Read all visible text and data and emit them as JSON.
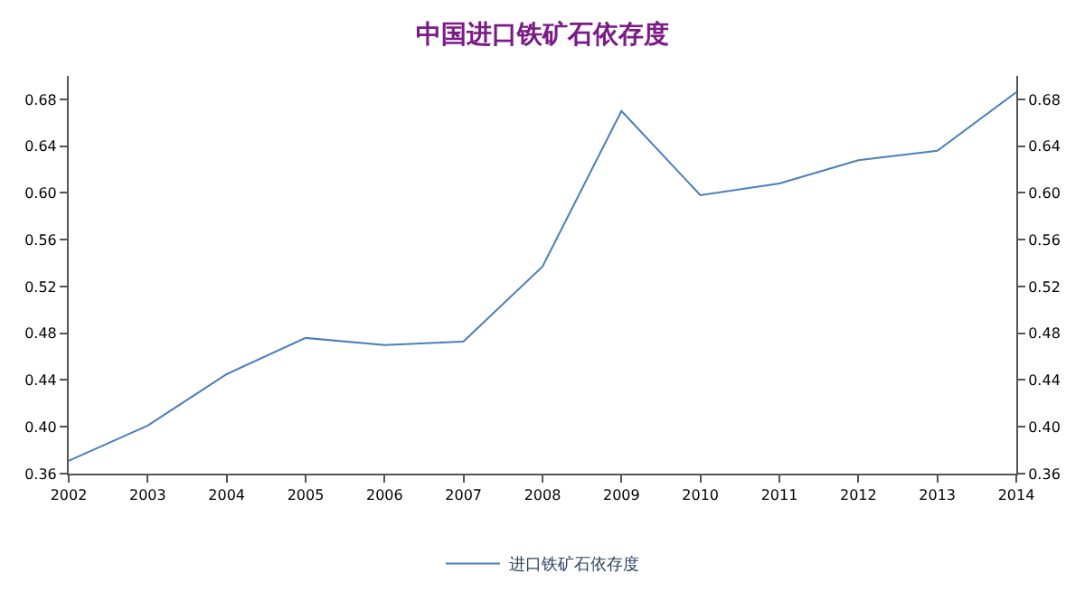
{
  "chart_data": {
    "type": "line",
    "title": "中国进口铁矿石依存度",
    "x": [
      2002,
      2003,
      2004,
      2005,
      2006,
      2007,
      2008,
      2009,
      2010,
      2011,
      2012,
      2013,
      2014
    ],
    "series": [
      {
        "name": "进口铁矿石依存度",
        "color": "#4a7ebb",
        "values": [
          0.371,
          0.401,
          0.445,
          0.476,
          0.47,
          0.473,
          0.537,
          0.67,
          0.598,
          0.608,
          0.628,
          0.636,
          0.686
        ]
      }
    ],
    "xlim": [
      2002,
      2014
    ],
    "xticks": [
      2002,
      2003,
      2004,
      2005,
      2006,
      2007,
      2008,
      2009,
      2010,
      2011,
      2012,
      2013,
      2014
    ],
    "ylim": [
      0.36,
      0.7
    ],
    "yticks": [
      {
        "value": 0.36,
        "label": "0.36"
      },
      {
        "value": 0.4,
        "label": "0.40"
      },
      {
        "value": 0.44,
        "label": "0.44"
      },
      {
        "value": 0.48,
        "label": "0.48"
      },
      {
        "value": 0.52,
        "label": "0.52"
      },
      {
        "value": 0.56,
        "label": "0.56"
      },
      {
        "value": 0.6,
        "label": "0.60"
      },
      {
        "value": 0.64,
        "label": "0.64"
      },
      {
        "value": 0.68,
        "label": "0.68"
      }
    ],
    "y2lim": [
      0.36,
      0.7
    ],
    "y2ticks": [
      {
        "value": 0.36,
        "label": "0.36"
      },
      {
        "value": 0.4,
        "label": "0.40"
      },
      {
        "value": 0.44,
        "label": "0.44"
      },
      {
        "value": 0.48,
        "label": "0.48"
      },
      {
        "value": 0.52,
        "label": "0.52"
      },
      {
        "value": 0.56,
        "label": "0.56"
      },
      {
        "value": 0.6,
        "label": "0.60"
      },
      {
        "value": 0.64,
        "label": "0.64"
      },
      {
        "value": 0.68,
        "label": "0.68"
      }
    ],
    "legend": "bottom",
    "marker": "none",
    "line_style": "solid"
  }
}
